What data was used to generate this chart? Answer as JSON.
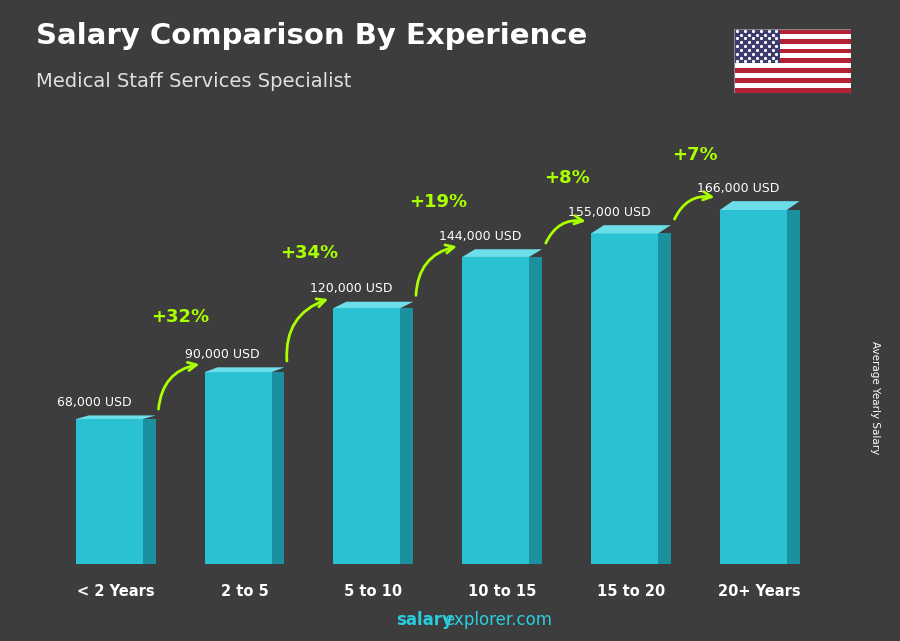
{
  "title": "Salary Comparison By Experience",
  "subtitle": "Medical Staff Services Specialist",
  "categories": [
    "< 2 Years",
    "2 to 5",
    "5 to 10",
    "10 to 15",
    "15 to 20",
    "20+ Years"
  ],
  "values": [
    68000,
    90000,
    120000,
    144000,
    155000,
    166000
  ],
  "labels": [
    "68,000 USD",
    "90,000 USD",
    "120,000 USD",
    "144,000 USD",
    "155,000 USD",
    "166,000 USD"
  ],
  "pct_changes": [
    "+32%",
    "+34%",
    "+19%",
    "+8%",
    "+7%"
  ],
  "bar_color_face": "#29cde0",
  "bar_color_light": "#6ee8f5",
  "bar_color_dark": "#1899a8",
  "bg_color": "#3d3d3d",
  "title_color": "#ffffff",
  "subtitle_color": "#e0e0e0",
  "label_color": "#ffffff",
  "pct_color": "#aaff00",
  "arrow_color": "#aaff00",
  "ylabel_text": "Average Yearly Salary",
  "footer_salary": "salary",
  "footer_rest": "explorer.com",
  "footer_color_bold": "#29cde0",
  "footer_color_normal": "#29cde0"
}
